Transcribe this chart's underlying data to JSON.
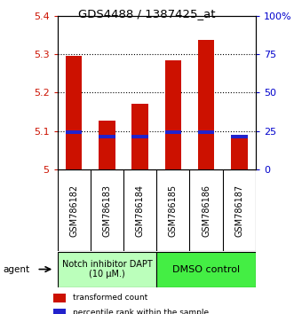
{
  "title": "GDS4488 / 1387425_at",
  "samples": [
    "GSM786182",
    "GSM786183",
    "GSM786184",
    "GSM786185",
    "GSM786186",
    "GSM786187"
  ],
  "bar_bottoms": [
    5.0,
    5.0,
    5.0,
    5.0,
    5.0,
    5.0
  ],
  "bar_tops": [
    5.295,
    5.128,
    5.172,
    5.283,
    5.337,
    5.087
  ],
  "percentile_values": [
    5.093,
    5.082,
    5.082,
    5.093,
    5.093,
    5.082
  ],
  "percentile_heights": [
    0.009,
    0.009,
    0.009,
    0.009,
    0.009,
    0.009
  ],
  "bar_color": "#cc1100",
  "percentile_color": "#2222cc",
  "ylim": [
    5.0,
    5.4
  ],
  "yticks_left": [
    5.0,
    5.1,
    5.2,
    5.3,
    5.4
  ],
  "yticks_left_labels": [
    "5",
    "5.1",
    "5.2",
    "5.3",
    "5.4"
  ],
  "yticks_right": [
    0,
    25,
    50,
    75,
    100
  ],
  "yticks_right_labels": [
    "0",
    "25",
    "50",
    "75",
    "100%"
  ],
  "grid_values": [
    5.1,
    5.2,
    5.3
  ],
  "groups": [
    {
      "label": "Notch inhibitor DAPT\n(10 μM.)",
      "samples": [
        0,
        1,
        2
      ],
      "color": "#bbffbb"
    },
    {
      "label": "DMSO control",
      "samples": [
        3,
        4,
        5
      ],
      "color": "#44ee44"
    }
  ],
  "agent_label": "agent",
  "legend_items": [
    {
      "color": "#cc1100",
      "label": "transformed count"
    },
    {
      "color": "#2222cc",
      "label": "percentile rank within the sample"
    }
  ],
  "left_label_color": "#cc1100",
  "right_label_color": "#0000cc",
  "bar_width": 0.5,
  "background_color": "#ffffff",
  "plot_bg_color": "#ffffff",
  "tick_area_color": "#cccccc"
}
